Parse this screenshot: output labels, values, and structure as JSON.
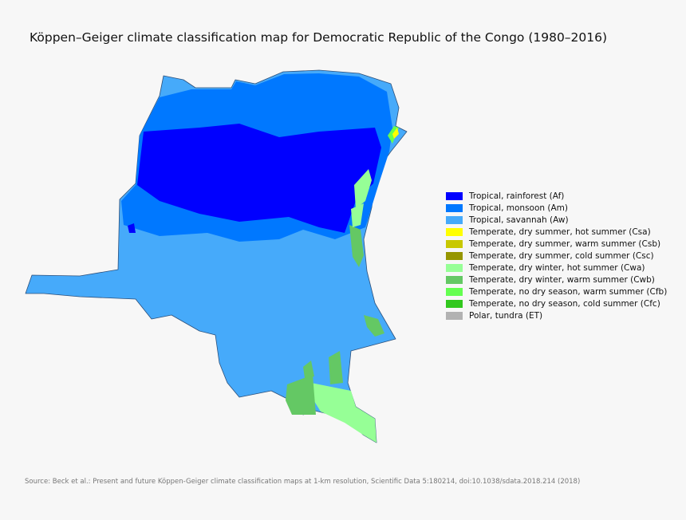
{
  "title": "Köppen–Geiger climate classification map for Democratic Republic of the Congo (1980–2016)",
  "legend": [
    {
      "name": "Tropical, rainforest (Af)",
      "color": "#0000ff"
    },
    {
      "name": "Tropical, monsoon (Am)",
      "color": "#0078ff"
    },
    {
      "name": "Tropical, savannah (Aw)",
      "color": "#46aafa"
    },
    {
      "name": "Temperate, dry summer, hot summer (Csa)",
      "color": "#ffff00"
    },
    {
      "name": "Temperate, dry summer, warm summer (Csb)",
      "color": "#c8c800"
    },
    {
      "name": "Temperate, dry summer, cold summer (Csc)",
      "color": "#969600"
    },
    {
      "name": "Temperate, dry winter, hot summer (Cwa)",
      "color": "#96ff96"
    },
    {
      "name": "Temperate, dry winter, warm summer (Cwb)",
      "color": "#64c864"
    },
    {
      "name": "Temperate, no dry season, warm summer (Cfb)",
      "color": "#64ff50"
    },
    {
      "name": "Temperate, no dry season, cold summer (Cfc)",
      "color": "#32c81e"
    },
    {
      "name": "Polar, tundra (ET)",
      "color": "#b2b2b2"
    }
  ],
  "source": "Source: Beck et al.: Present and future Köppen-Geiger climate classification maps at 1-km resolution, Scientific Data 5:180214, doi:10.1038/sdata.2018.214 (2018)"
}
